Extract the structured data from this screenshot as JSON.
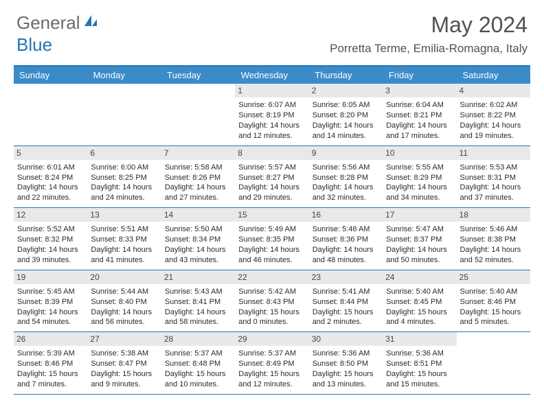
{
  "brand": {
    "part1": "General",
    "part2": "Blue"
  },
  "title": "May 2024",
  "location": "Porretta Terme, Emilia-Romagna, Italy",
  "colors": {
    "header_bar": "#3b8bc8",
    "border": "#2176b8",
    "daynum_bg": "#e9e9e9",
    "text": "#333333",
    "title_color": "#515151"
  },
  "weekdays": [
    "Sunday",
    "Monday",
    "Tuesday",
    "Wednesday",
    "Thursday",
    "Friday",
    "Saturday"
  ],
  "weeks": [
    [
      null,
      null,
      null,
      {
        "n": "1",
        "sr": "6:07 AM",
        "ss": "8:19 PM",
        "dl": "14 hours and 12 minutes."
      },
      {
        "n": "2",
        "sr": "6:05 AM",
        "ss": "8:20 PM",
        "dl": "14 hours and 14 minutes."
      },
      {
        "n": "3",
        "sr": "6:04 AM",
        "ss": "8:21 PM",
        "dl": "14 hours and 17 minutes."
      },
      {
        "n": "4",
        "sr": "6:02 AM",
        "ss": "8:22 PM",
        "dl": "14 hours and 19 minutes."
      }
    ],
    [
      {
        "n": "5",
        "sr": "6:01 AM",
        "ss": "8:24 PM",
        "dl": "14 hours and 22 minutes."
      },
      {
        "n": "6",
        "sr": "6:00 AM",
        "ss": "8:25 PM",
        "dl": "14 hours and 24 minutes."
      },
      {
        "n": "7",
        "sr": "5:58 AM",
        "ss": "8:26 PM",
        "dl": "14 hours and 27 minutes."
      },
      {
        "n": "8",
        "sr": "5:57 AM",
        "ss": "8:27 PM",
        "dl": "14 hours and 29 minutes."
      },
      {
        "n": "9",
        "sr": "5:56 AM",
        "ss": "8:28 PM",
        "dl": "14 hours and 32 minutes."
      },
      {
        "n": "10",
        "sr": "5:55 AM",
        "ss": "8:29 PM",
        "dl": "14 hours and 34 minutes."
      },
      {
        "n": "11",
        "sr": "5:53 AM",
        "ss": "8:31 PM",
        "dl": "14 hours and 37 minutes."
      }
    ],
    [
      {
        "n": "12",
        "sr": "5:52 AM",
        "ss": "8:32 PM",
        "dl": "14 hours and 39 minutes."
      },
      {
        "n": "13",
        "sr": "5:51 AM",
        "ss": "8:33 PM",
        "dl": "14 hours and 41 minutes."
      },
      {
        "n": "14",
        "sr": "5:50 AM",
        "ss": "8:34 PM",
        "dl": "14 hours and 43 minutes."
      },
      {
        "n": "15",
        "sr": "5:49 AM",
        "ss": "8:35 PM",
        "dl": "14 hours and 46 minutes."
      },
      {
        "n": "16",
        "sr": "5:48 AM",
        "ss": "8:36 PM",
        "dl": "14 hours and 48 minutes."
      },
      {
        "n": "17",
        "sr": "5:47 AM",
        "ss": "8:37 PM",
        "dl": "14 hours and 50 minutes."
      },
      {
        "n": "18",
        "sr": "5:46 AM",
        "ss": "8:38 PM",
        "dl": "14 hours and 52 minutes."
      }
    ],
    [
      {
        "n": "19",
        "sr": "5:45 AM",
        "ss": "8:39 PM",
        "dl": "14 hours and 54 minutes."
      },
      {
        "n": "20",
        "sr": "5:44 AM",
        "ss": "8:40 PM",
        "dl": "14 hours and 56 minutes."
      },
      {
        "n": "21",
        "sr": "5:43 AM",
        "ss": "8:41 PM",
        "dl": "14 hours and 58 minutes."
      },
      {
        "n": "22",
        "sr": "5:42 AM",
        "ss": "8:43 PM",
        "dl": "15 hours and 0 minutes."
      },
      {
        "n": "23",
        "sr": "5:41 AM",
        "ss": "8:44 PM",
        "dl": "15 hours and 2 minutes."
      },
      {
        "n": "24",
        "sr": "5:40 AM",
        "ss": "8:45 PM",
        "dl": "15 hours and 4 minutes."
      },
      {
        "n": "25",
        "sr": "5:40 AM",
        "ss": "8:46 PM",
        "dl": "15 hours and 5 minutes."
      }
    ],
    [
      {
        "n": "26",
        "sr": "5:39 AM",
        "ss": "8:46 PM",
        "dl": "15 hours and 7 minutes."
      },
      {
        "n": "27",
        "sr": "5:38 AM",
        "ss": "8:47 PM",
        "dl": "15 hours and 9 minutes."
      },
      {
        "n": "28",
        "sr": "5:37 AM",
        "ss": "8:48 PM",
        "dl": "15 hours and 10 minutes."
      },
      {
        "n": "29",
        "sr": "5:37 AM",
        "ss": "8:49 PM",
        "dl": "15 hours and 12 minutes."
      },
      {
        "n": "30",
        "sr": "5:36 AM",
        "ss": "8:50 PM",
        "dl": "15 hours and 13 minutes."
      },
      {
        "n": "31",
        "sr": "5:36 AM",
        "ss": "8:51 PM",
        "dl": "15 hours and 15 minutes."
      },
      null
    ]
  ],
  "labels": {
    "sunrise": "Sunrise:",
    "sunset": "Sunset:",
    "daylight": "Daylight:"
  }
}
